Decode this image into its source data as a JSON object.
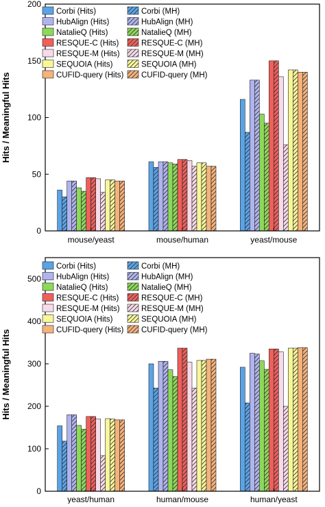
{
  "series_styles": [
    {
      "color": "#5aa3e6"
    },
    {
      "color": "#b0b4ee"
    },
    {
      "color": "#8ed85a"
    },
    {
      "color": "#ef5f5b"
    },
    {
      "color": "#f7dbe9"
    },
    {
      "color": "#f8f69a"
    },
    {
      "color": "#f5b27b"
    }
  ],
  "chart_data": [
    {
      "type": "bar",
      "ylabel": "Hits / Meaningful Hits",
      "ylim": [
        0,
        200
      ],
      "yticks": [
        0,
        50,
        100,
        150,
        200
      ],
      "legend_position": "top-left",
      "categories": [
        "mouse/yeast",
        "mouse/human",
        "yeast/mouse"
      ],
      "series": [
        {
          "name": "Corbi (Hits)",
          "hatched": false,
          "values": [
            36,
            61,
            116
          ]
        },
        {
          "name": "Corbi (MH)",
          "hatched": true,
          "values": [
            30,
            56,
            87
          ]
        },
        {
          "name": "HubAlign (Hits)",
          "hatched": false,
          "values": [
            44,
            61,
            133
          ]
        },
        {
          "name": "HubAlign (MH)",
          "hatched": true,
          "values": [
            44,
            61,
            133
          ]
        },
        {
          "name": "NatalieQ (Hits)",
          "hatched": false,
          "values": [
            38,
            60,
            103
          ]
        },
        {
          "name": "NatalieQ (MH)",
          "hatched": true,
          "values": [
            35,
            59,
            95
          ]
        },
        {
          "name": "RESQUE-C (Hits)",
          "hatched": false,
          "values": [
            47,
            63,
            150
          ]
        },
        {
          "name": "RESQUE-C (MH)",
          "hatched": true,
          "values": [
            47,
            63,
            150
          ]
        },
        {
          "name": "RESQUE-M (Hits)",
          "hatched": false,
          "values": [
            46,
            62,
            136
          ]
        },
        {
          "name": "RESQUE-M (MH)",
          "hatched": true,
          "values": [
            34,
            57,
            76
          ]
        },
        {
          "name": "SEQUOIA (Hits)",
          "hatched": false,
          "values": [
            45,
            60,
            142
          ]
        },
        {
          "name": "SEQUOIA (MH)",
          "hatched": true,
          "values": [
            45,
            60,
            142
          ]
        },
        {
          "name": "CUFID-query (Hits)",
          "hatched": false,
          "values": [
            44,
            57,
            140
          ]
        },
        {
          "name": "CUFID-query (MH)",
          "hatched": true,
          "values": [
            44,
            57,
            140
          ]
        }
      ]
    },
    {
      "type": "bar",
      "ylabel": "Hits / Meaningful Hits",
      "ylim": [
        0,
        550
      ],
      "yticks": [
        0,
        100,
        200,
        300,
        400,
        500
      ],
      "legend_position": "top-left",
      "categories": [
        "yeast/human",
        "human/mouse",
        "human/yeast"
      ],
      "series": [
        {
          "name": "Corbi (Hits)",
          "hatched": false,
          "values": [
            154,
            300,
            292
          ]
        },
        {
          "name": "Corbi (MH)",
          "hatched": true,
          "values": [
            118,
            243,
            208
          ]
        },
        {
          "name": "HubAlign (Hits)",
          "hatched": false,
          "values": [
            180,
            306,
            325
          ]
        },
        {
          "name": "HubAlign (MH)",
          "hatched": true,
          "values": [
            180,
            306,
            323
          ]
        },
        {
          "name": "NatalieQ (Hits)",
          "hatched": false,
          "values": [
            155,
            286,
            307
          ]
        },
        {
          "name": "NatalieQ (MH)",
          "hatched": true,
          "values": [
            146,
            270,
            287
          ]
        },
        {
          "name": "RESQUE-C (Hits)",
          "hatched": false,
          "values": [
            176,
            337,
            335
          ]
        },
        {
          "name": "RESQUE-C (MH)",
          "hatched": true,
          "values": [
            176,
            337,
            335
          ]
        },
        {
          "name": "RESQUE-M (Hits)",
          "hatched": false,
          "values": [
            170,
            304,
            328
          ]
        },
        {
          "name": "RESQUE-M (MH)",
          "hatched": true,
          "values": [
            84,
            243,
            200
          ]
        },
        {
          "name": "SEQUOIA (Hits)",
          "hatched": false,
          "values": [
            171,
            308,
            337
          ]
        },
        {
          "name": "SEQUOIA (MH)",
          "hatched": true,
          "values": [
            170,
            308,
            337
          ]
        },
        {
          "name": "CUFID-query (Hits)",
          "hatched": false,
          "values": [
            168,
            311,
            338
          ]
        },
        {
          "name": "CUFID-query (MH)",
          "hatched": true,
          "values": [
            168,
            311,
            338
          ]
        }
      ]
    }
  ]
}
